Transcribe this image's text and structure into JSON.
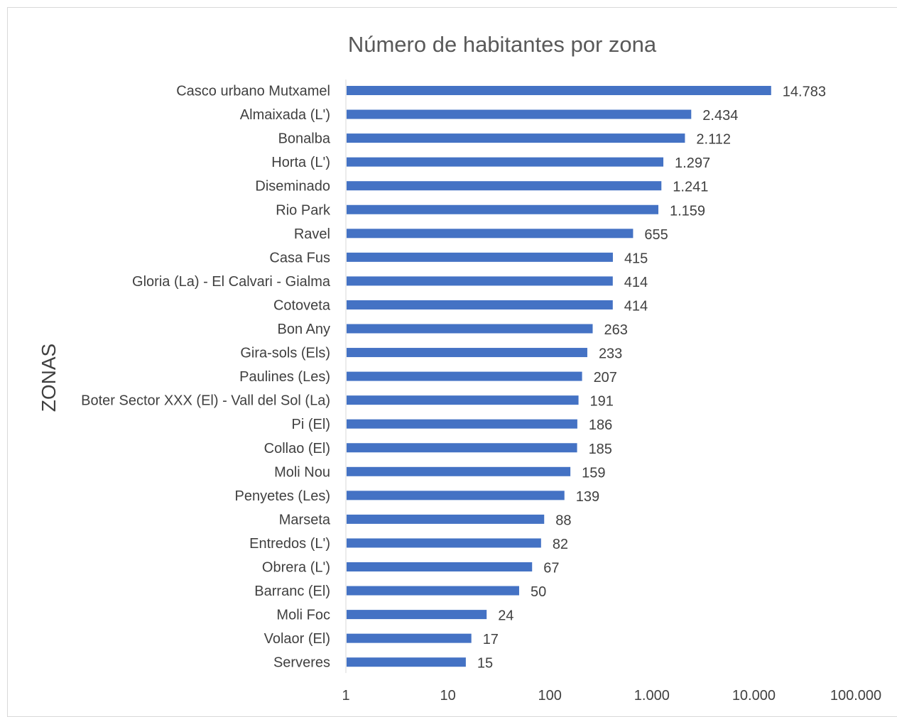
{
  "chart_data": {
    "type": "bar",
    "orientation": "horizontal",
    "title": "Número de habitantes por zona",
    "ylabel": "ZONAS",
    "xlabel": "",
    "xscale": "log",
    "xlim": [
      1,
      100000
    ],
    "grid": false,
    "legend": "none",
    "bar_color": "#4472C4",
    "x_tick_values": [
      1,
      10,
      100,
      1000,
      10000,
      100000
    ],
    "x_tick_labels": [
      "1",
      "10",
      "100",
      "1.000",
      "10.000",
      "100.000"
    ],
    "categories": [
      "Casco urbano Mutxamel",
      "Almaixada (L')",
      "Bonalba",
      "Horta (L')",
      "Diseminado",
      "Rio Park",
      "Ravel",
      "Casa Fus",
      "Gloria (La) - El Calvari - Gialma",
      "Cotoveta",
      "Bon Any",
      "Gira-sols (Els)",
      "Paulines (Les)",
      "Boter Sector XXX (El) - Vall del Sol (La)",
      "Pi (El)",
      "Collao (El)",
      "Moli Nou",
      "Penyetes (Les)",
      "Marseta",
      "Entredos (L')",
      "Obrera (L')",
      "Barranc (El)",
      "Moli Foc",
      "Volaor (El)",
      "Serveres"
    ],
    "values": [
      14783,
      2434,
      2112,
      1297,
      1241,
      1159,
      655,
      415,
      414,
      414,
      263,
      233,
      207,
      191,
      186,
      185,
      159,
      139,
      88,
      82,
      67,
      50,
      24,
      17,
      15
    ],
    "value_labels": [
      "14.783",
      "2.434",
      "2.112",
      "1.297",
      "1.241",
      "1.159",
      "655",
      "415",
      "414",
      "414",
      "263",
      "233",
      "207",
      "191",
      "186",
      "185",
      "159",
      "139",
      "88",
      "82",
      "67",
      "50",
      "24",
      "17",
      "15"
    ]
  }
}
